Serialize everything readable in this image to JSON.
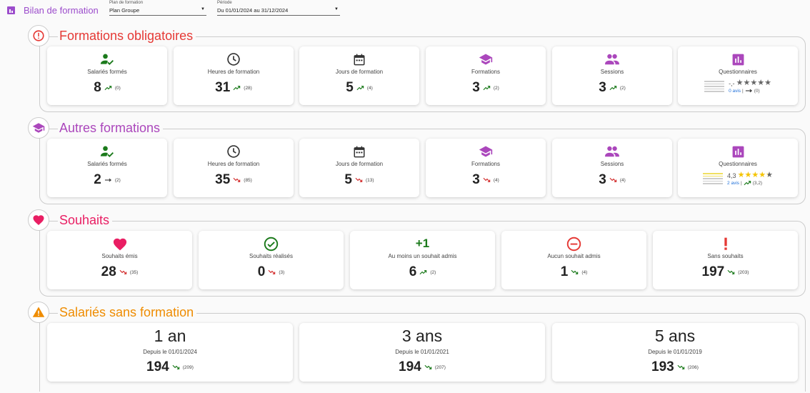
{
  "header": {
    "title": "Bilan de formation",
    "plan": {
      "label": "Plan de formation",
      "value": "Plan Groupe"
    },
    "periode": {
      "label": "Période",
      "value": "Du 01/01/2024 au 31/12/2024"
    }
  },
  "colors": {
    "red": "#e53935",
    "purple": "#ab47bc",
    "pink": "#e91e63",
    "orange": "#ef8c00",
    "green": "#1b7a1b",
    "trendRed": "#d32f2f"
  },
  "obligatoires": {
    "title": "Formations obligatoires",
    "cards": [
      {
        "label": "Salariés formés",
        "value": "8",
        "prev": "(0)",
        "trend": "up"
      },
      {
        "label": "Heures de formation",
        "value": "31",
        "prev": "(28)",
        "trend": "up"
      },
      {
        "label": "Jours de formation",
        "value": "5",
        "prev": "(4)",
        "trend": "up"
      },
      {
        "label": "Formations",
        "value": "3",
        "prev": "(2)",
        "trend": "up"
      },
      {
        "label": "Sessions",
        "value": "3",
        "prev": "(2)",
        "trend": "up"
      }
    ],
    "questionnaires": {
      "label": "Questionnaires",
      "score": "-,-",
      "stars": 0,
      "avis": "0 avis",
      "prev": "(0)",
      "trend": "flat"
    }
  },
  "autres": {
    "title": "Autres formations",
    "cards": [
      {
        "label": "Salariés formés",
        "value": "2",
        "prev": "(2)",
        "trend": "flat"
      },
      {
        "label": "Heures de formation",
        "value": "35",
        "prev": "(85)",
        "trend": "down"
      },
      {
        "label": "Jours de formation",
        "value": "5",
        "prev": "(13)",
        "trend": "down"
      },
      {
        "label": "Formations",
        "value": "3",
        "prev": "(4)",
        "trend": "down"
      },
      {
        "label": "Sessions",
        "value": "3",
        "prev": "(4)",
        "trend": "down"
      }
    ],
    "questionnaires": {
      "label": "Questionnaires",
      "score": "4,3",
      "stars": 4.3,
      "avis": "2 avis",
      "prev": "(3,2)",
      "trend": "up"
    }
  },
  "souhaits": {
    "title": "Souhaits",
    "plus_one": "+1",
    "cards": [
      {
        "label": "Souhaits émis",
        "value": "28",
        "prev": "(35)",
        "trend": "down"
      },
      {
        "label": "Souhaits réalisés",
        "value": "0",
        "prev": "(3)",
        "trend": "down"
      },
      {
        "label": "Au moins un souhait admis",
        "value": "6",
        "prev": "(2)",
        "trend": "up"
      },
      {
        "label": "Aucun souhait admis",
        "value": "1",
        "prev": "(4)",
        "trend": "down-good"
      },
      {
        "label": "Sans souhaits",
        "value": "197",
        "prev": "(203)",
        "trend": "down-good"
      }
    ]
  },
  "sans_formation": {
    "title": "Salariés sans formation",
    "cards": [
      {
        "period": "1 an",
        "label": "Depuis le 01/01/2024",
        "value": "194",
        "prev": "(209)",
        "trend": "down-good"
      },
      {
        "period": "3 ans",
        "label": "Depuis le 01/01/2021",
        "value": "194",
        "prev": "(207)",
        "trend": "down-good"
      },
      {
        "period": "5 ans",
        "label": "Depuis le 01/01/2019",
        "value": "193",
        "prev": "(206)",
        "trend": "down-good"
      }
    ]
  }
}
